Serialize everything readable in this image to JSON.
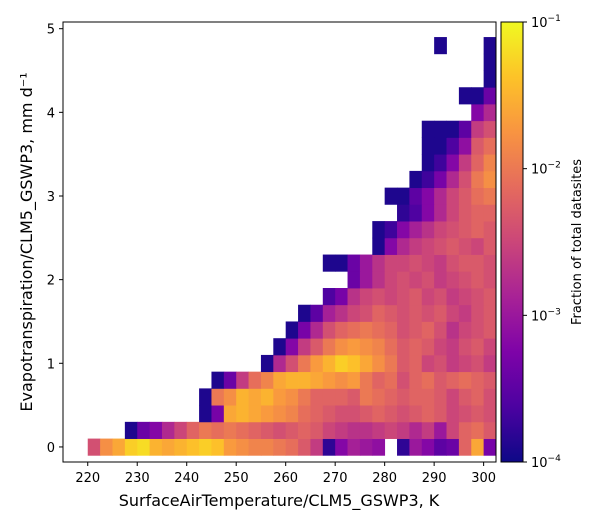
{
  "chart_data": {
    "type": "heatmap",
    "title": "",
    "xlabel": "SurfaceAirTemperature/CLM5_GSWP3,  K",
    "ylabel": "Evapotranspiration/CLM5_GSWP3,  mm d⁻¹",
    "xlim": [
      215,
      302.5
    ],
    "ylim": [
      -0.18,
      5.08
    ],
    "xticks": [
      220,
      230,
      240,
      250,
      260,
      270,
      280,
      290,
      300
    ],
    "xtick_labels": [
      "220",
      "230",
      "240",
      "250",
      "260",
      "270",
      "280",
      "290",
      "300"
    ],
    "yticks": [
      0,
      1,
      2,
      3,
      4,
      5
    ],
    "ytick_labels": [
      "0",
      "1",
      "2",
      "3",
      "4",
      "5"
    ],
    "x_bin_start": 217.5,
    "x_bin_width": 2.5,
    "y_bin_start": -0.1,
    "y_bin_width": 0.2,
    "x_bin_count": 34,
    "y_bin_count": 25,
    "colormap": "plasma",
    "color_scale": "log",
    "cells_note_units": "log10 of fraction of total datasites",
    "cells": [
      [
        1,
        0,
        -2.4
      ],
      [
        2,
        0,
        -1.8
      ],
      [
        3,
        0,
        -1.6
      ],
      [
        4,
        0,
        -1.3
      ],
      [
        5,
        0,
        -1.2
      ],
      [
        6,
        0,
        -1.5
      ],
      [
        7,
        0,
        -1.6
      ],
      [
        8,
        0,
        -1.5
      ],
      [
        9,
        0,
        -1.4
      ],
      [
        10,
        0,
        -1.3
      ],
      [
        11,
        0,
        -1.4
      ],
      [
        12,
        0,
        -1.7
      ],
      [
        13,
        0,
        -1.8
      ],
      [
        14,
        0,
        -1.9
      ],
      [
        15,
        0,
        -1.9
      ],
      [
        16,
        0,
        -2.0
      ],
      [
        17,
        0,
        -2.1
      ],
      [
        18,
        0,
        -2.3
      ],
      [
        19,
        0,
        -2.6
      ],
      [
        20,
        0,
        -3.8
      ],
      [
        21,
        0,
        -3.2
      ],
      [
        22,
        0,
        -2.9
      ],
      [
        23,
        0,
        -3.0
      ],
      [
        24,
        0,
        -3.1
      ],
      [
        26,
        0,
        -3.8
      ],
      [
        27,
        0,
        -3.0
      ],
      [
        28,
        0,
        -3.2
      ],
      [
        29,
        0,
        -3.5
      ],
      [
        30,
        0,
        -3.4
      ],
      [
        31,
        0,
        -2.2
      ],
      [
        32,
        0,
        -1.6
      ],
      [
        33,
        0,
        -3.3
      ],
      [
        4,
        1,
        -3.9
      ],
      [
        5,
        1,
        -3.4
      ],
      [
        6,
        1,
        -3.2
      ],
      [
        7,
        1,
        -2.8
      ],
      [
        8,
        1,
        -2.5
      ],
      [
        9,
        1,
        -2.2
      ],
      [
        10,
        1,
        -2.0
      ],
      [
        11,
        1,
        -2.1
      ],
      [
        12,
        1,
        -2.0
      ],
      [
        13,
        1,
        -2.1
      ],
      [
        14,
        1,
        -2.2
      ],
      [
        15,
        1,
        -2.3
      ],
      [
        16,
        1,
        -2.4
      ],
      [
        17,
        1,
        -2.3
      ],
      [
        18,
        1,
        -2.2
      ],
      [
        19,
        1,
        -2.3
      ],
      [
        20,
        1,
        -2.5
      ],
      [
        21,
        1,
        -2.6
      ],
      [
        22,
        1,
        -2.7
      ],
      [
        23,
        1,
        -2.7
      ],
      [
        24,
        1,
        -2.6
      ],
      [
        25,
        1,
        -2.5
      ],
      [
        26,
        1,
        -2.6
      ],
      [
        27,
        1,
        -2.8
      ],
      [
        28,
        1,
        -2.6
      ],
      [
        29,
        1,
        -3.0
      ],
      [
        30,
        1,
        -2.5
      ],
      [
        31,
        1,
        -2.2
      ],
      [
        32,
        1,
        -2.1
      ],
      [
        33,
        1,
        -2.3
      ],
      [
        10,
        2,
        -3.9
      ],
      [
        11,
        2,
        -3.3
      ],
      [
        12,
        2,
        -1.6
      ],
      [
        13,
        2,
        -1.5
      ],
      [
        14,
        2,
        -1.6
      ],
      [
        15,
        2,
        -1.7
      ],
      [
        16,
        2,
        -1.8
      ],
      [
        17,
        2,
        -1.9
      ],
      [
        18,
        2,
        -2.1
      ],
      [
        19,
        2,
        -2.2
      ],
      [
        20,
        2,
        -2.3
      ],
      [
        21,
        2,
        -2.4
      ],
      [
        22,
        2,
        -2.4
      ],
      [
        23,
        2,
        -2.3
      ],
      [
        24,
        2,
        -2.2
      ],
      [
        25,
        2,
        -2.3
      ],
      [
        26,
        2,
        -2.4
      ],
      [
        27,
        2,
        -2.3
      ],
      [
        28,
        2,
        -2.2
      ],
      [
        29,
        2,
        -2.3
      ],
      [
        30,
        2,
        -2.5
      ],
      [
        31,
        2,
        -2.4
      ],
      [
        32,
        2,
        -2.3
      ],
      [
        33,
        2,
        -2.4
      ],
      [
        10,
        3,
        -3.9
      ],
      [
        11,
        3,
        -2.0
      ],
      [
        12,
        3,
        -1.8
      ],
      [
        13,
        3,
        -1.5
      ],
      [
        14,
        3,
        -1.6
      ],
      [
        15,
        3,
        -1.5
      ],
      [
        16,
        3,
        -1.7
      ],
      [
        17,
        3,
        -1.8
      ],
      [
        18,
        3,
        -2.0
      ],
      [
        19,
        3,
        -2.2
      ],
      [
        20,
        3,
        -2.2
      ],
      [
        21,
        3,
        -2.2
      ],
      [
        22,
        3,
        -2.3
      ],
      [
        23,
        3,
        -2.0
      ],
      [
        24,
        3,
        -2.1
      ],
      [
        25,
        3,
        -2.2
      ],
      [
        26,
        3,
        -2.3
      ],
      [
        27,
        3,
        -2.2
      ],
      [
        28,
        3,
        -2.2
      ],
      [
        29,
        3,
        -2.3
      ],
      [
        30,
        3,
        -2.5
      ],
      [
        31,
        3,
        -2.3
      ],
      [
        32,
        3,
        -2.2
      ],
      [
        33,
        3,
        -2.4
      ],
      [
        11,
        4,
        -3.9
      ],
      [
        12,
        4,
        -3.4
      ],
      [
        13,
        4,
        -2.6
      ],
      [
        14,
        4,
        -2.1
      ],
      [
        15,
        4,
        -1.9
      ],
      [
        16,
        4,
        -1.6
      ],
      [
        17,
        4,
        -1.5
      ],
      [
        18,
        4,
        -1.5
      ],
      [
        19,
        4,
        -1.6
      ],
      [
        20,
        4,
        -1.7
      ],
      [
        21,
        4,
        -1.8
      ],
      [
        22,
        4,
        -1.7
      ],
      [
        23,
        4,
        -2.0
      ],
      [
        24,
        4,
        -2.2
      ],
      [
        25,
        4,
        -2.1
      ],
      [
        26,
        4,
        -2.4
      ],
      [
        27,
        4,
        -2.2
      ],
      [
        28,
        4,
        -2.1
      ],
      [
        29,
        4,
        -2.3
      ],
      [
        30,
        4,
        -2.2
      ],
      [
        31,
        4,
        -2.1
      ],
      [
        32,
        4,
        -2.2
      ],
      [
        33,
        4,
        -2.3
      ],
      [
        15,
        5,
        -3.9
      ],
      [
        16,
        5,
        -2.8
      ],
      [
        17,
        5,
        -2.4
      ],
      [
        18,
        5,
        -2.0
      ],
      [
        19,
        5,
        -1.7
      ],
      [
        20,
        5,
        -1.5
      ],
      [
        21,
        5,
        -1.3
      ],
      [
        22,
        5,
        -1.4
      ],
      [
        23,
        5,
        -1.6
      ],
      [
        24,
        5,
        -1.8
      ],
      [
        25,
        5,
        -2.0
      ],
      [
        26,
        5,
        -2.3
      ],
      [
        27,
        5,
        -2.2
      ],
      [
        28,
        5,
        -2.5
      ],
      [
        29,
        5,
        -2.4
      ],
      [
        30,
        5,
        -2.6
      ],
      [
        31,
        5,
        -2.5
      ],
      [
        32,
        5,
        -2.4
      ],
      [
        33,
        5,
        -2.6
      ],
      [
        16,
        6,
        -3.9
      ],
      [
        17,
        6,
        -3.2
      ],
      [
        18,
        6,
        -2.6
      ],
      [
        19,
        6,
        -2.3
      ],
      [
        20,
        6,
        -2.0
      ],
      [
        21,
        6,
        -1.8
      ],
      [
        22,
        6,
        -1.7
      ],
      [
        23,
        6,
        -1.8
      ],
      [
        24,
        6,
        -1.9
      ],
      [
        25,
        6,
        -2.1
      ],
      [
        26,
        6,
        -2.3
      ],
      [
        27,
        6,
        -2.2
      ],
      [
        28,
        6,
        -2.3
      ],
      [
        29,
        6,
        -2.5
      ],
      [
        30,
        6,
        -2.6
      ],
      [
        31,
        6,
        -2.4
      ],
      [
        32,
        6,
        -2.3
      ],
      [
        33,
        6,
        -2.5
      ],
      [
        17,
        7,
        -3.9
      ],
      [
        18,
        7,
        -3.3
      ],
      [
        19,
        7,
        -2.8
      ],
      [
        20,
        7,
        -2.4
      ],
      [
        21,
        7,
        -2.2
      ],
      [
        22,
        7,
        -2.1
      ],
      [
        23,
        7,
        -2.0
      ],
      [
        24,
        7,
        -2.1
      ],
      [
        25,
        7,
        -2.2
      ],
      [
        26,
        7,
        -2.4
      ],
      [
        27,
        7,
        -2.3
      ],
      [
        28,
        7,
        -2.2
      ],
      [
        29,
        7,
        -2.4
      ],
      [
        30,
        7,
        -2.7
      ],
      [
        31,
        7,
        -2.5
      ],
      [
        32,
        7,
        -2.4
      ],
      [
        33,
        7,
        -2.3
      ],
      [
        18,
        8,
        -3.9
      ],
      [
        19,
        8,
        -3.5
      ],
      [
        20,
        8,
        -2.9
      ],
      [
        21,
        8,
        -2.7
      ],
      [
        22,
        8,
        -2.5
      ],
      [
        23,
        8,
        -2.4
      ],
      [
        24,
        8,
        -2.2
      ],
      [
        25,
        8,
        -2.3
      ],
      [
        26,
        8,
        -2.4
      ],
      [
        27,
        8,
        -2.3
      ],
      [
        28,
        8,
        -2.4
      ],
      [
        29,
        8,
        -2.3
      ],
      [
        30,
        8,
        -2.5
      ],
      [
        31,
        8,
        -2.6
      ],
      [
        32,
        8,
        -2.4
      ],
      [
        33,
        8,
        -2.3
      ],
      [
        20,
        9,
        -3.6
      ],
      [
        21,
        9,
        -3.3
      ],
      [
        22,
        9,
        -2.7
      ],
      [
        23,
        9,
        -2.5
      ],
      [
        24,
        9,
        -2.4
      ],
      [
        25,
        9,
        -2.5
      ],
      [
        26,
        9,
        -2.4
      ],
      [
        27,
        9,
        -2.3
      ],
      [
        28,
        9,
        -2.5
      ],
      [
        29,
        9,
        -2.4
      ],
      [
        30,
        9,
        -2.6
      ],
      [
        31,
        9,
        -2.5
      ],
      [
        32,
        9,
        -2.4
      ],
      [
        33,
        9,
        -2.3
      ],
      [
        22,
        10,
        -3.4
      ],
      [
        23,
        10,
        -3.0
      ],
      [
        24,
        10,
        -2.7
      ],
      [
        25,
        10,
        -2.5
      ],
      [
        26,
        10,
        -2.4
      ],
      [
        27,
        10,
        -2.5
      ],
      [
        28,
        10,
        -2.4
      ],
      [
        29,
        10,
        -2.6
      ],
      [
        30,
        10,
        -2.5
      ],
      [
        31,
        10,
        -2.4
      ],
      [
        32,
        10,
        -2.3
      ],
      [
        33,
        10,
        -2.4
      ],
      [
        20,
        11,
        -3.9
      ],
      [
        21,
        11,
        -3.9
      ],
      [
        22,
        11,
        -3.4
      ],
      [
        23,
        11,
        -3.0
      ],
      [
        24,
        11,
        -2.7
      ],
      [
        25,
        11,
        -2.5
      ],
      [
        26,
        11,
        -2.5
      ],
      [
        27,
        11,
        -2.4
      ],
      [
        28,
        11,
        -2.5
      ],
      [
        29,
        11,
        -2.6
      ],
      [
        30,
        11,
        -2.4
      ],
      [
        31,
        11,
        -2.3
      ],
      [
        32,
        11,
        -2.3
      ],
      [
        33,
        11,
        -2.4
      ],
      [
        24,
        12,
        -3.9
      ],
      [
        25,
        12,
        -3.2
      ],
      [
        26,
        12,
        -2.8
      ],
      [
        27,
        12,
        -2.6
      ],
      [
        28,
        12,
        -2.5
      ],
      [
        29,
        12,
        -2.4
      ],
      [
        30,
        12,
        -2.3
      ],
      [
        31,
        12,
        -2.4
      ],
      [
        32,
        12,
        -2.5
      ],
      [
        33,
        12,
        -2.3
      ],
      [
        24,
        13,
        -3.9
      ],
      [
        25,
        13,
        -3.7
      ],
      [
        26,
        13,
        -3.2
      ],
      [
        27,
        13,
        -2.9
      ],
      [
        28,
        13,
        -2.7
      ],
      [
        29,
        13,
        -2.5
      ],
      [
        30,
        13,
        -2.4
      ],
      [
        31,
        13,
        -2.3
      ],
      [
        32,
        13,
        -2.2
      ],
      [
        33,
        13,
        -2.3
      ],
      [
        26,
        14,
        -3.8
      ],
      [
        27,
        14,
        -3.6
      ],
      [
        28,
        14,
        -3.2
      ],
      [
        29,
        14,
        -2.8
      ],
      [
        30,
        14,
        -2.5
      ],
      [
        31,
        14,
        -2.3
      ],
      [
        32,
        14,
        -2.2
      ],
      [
        33,
        14,
        -2.2
      ],
      [
        25,
        15,
        -3.9
      ],
      [
        26,
        15,
        -3.9
      ],
      [
        27,
        15,
        -3.5
      ],
      [
        28,
        15,
        -3.2
      ],
      [
        29,
        15,
        -2.8
      ],
      [
        30,
        15,
        -2.5
      ],
      [
        31,
        15,
        -2.3
      ],
      [
        32,
        15,
        -2.1
      ],
      [
        33,
        15,
        -2.0
      ],
      [
        27,
        16,
        -3.9
      ],
      [
        28,
        16,
        -3.7
      ],
      [
        29,
        16,
        -3.3
      ],
      [
        30,
        16,
        -2.8
      ],
      [
        31,
        16,
        -2.4
      ],
      [
        32,
        16,
        -2.0
      ],
      [
        33,
        16,
        -1.8
      ],
      [
        28,
        17,
        -3.9
      ],
      [
        29,
        17,
        -3.7
      ],
      [
        30,
        17,
        -3.2
      ],
      [
        31,
        17,
        -2.6
      ],
      [
        32,
        17,
        -2.2
      ],
      [
        33,
        17,
        -1.9
      ],
      [
        28,
        18,
        -3.9
      ],
      [
        29,
        18,
        -3.9
      ],
      [
        30,
        18,
        -3.6
      ],
      [
        31,
        18,
        -3.1
      ],
      [
        32,
        18,
        -2.3
      ],
      [
        33,
        18,
        -2.1
      ],
      [
        28,
        19,
        -3.9
      ],
      [
        29,
        19,
        -3.9
      ],
      [
        30,
        19,
        -3.9
      ],
      [
        31,
        19,
        -3.5
      ],
      [
        32,
        19,
        -2.6
      ],
      [
        33,
        19,
        -2.4
      ],
      [
        32,
        20,
        -3.2
      ],
      [
        33,
        20,
        -2.8
      ],
      [
        31,
        21,
        -3.9
      ],
      [
        32,
        21,
        -3.9
      ],
      [
        33,
        21,
        -3.4
      ],
      [
        33,
        22,
        -3.9
      ],
      [
        33,
        23,
        -3.9
      ],
      [
        29,
        24,
        -3.9
      ],
      [
        33,
        24,
        -3.9
      ]
    ],
    "colorbar": {
      "label": "Fraction of total datasites",
      "range": [
        0.0001,
        0.1
      ],
      "tick_values": [
        0.0001,
        0.001,
        0.01,
        0.1
      ],
      "tick_labels": [
        {
          "base": "10",
          "exp": "−4"
        },
        {
          "base": "10",
          "exp": "−3"
        },
        {
          "base": "10",
          "exp": "−2"
        },
        {
          "base": "10",
          "exp": "−1"
        }
      ]
    }
  }
}
